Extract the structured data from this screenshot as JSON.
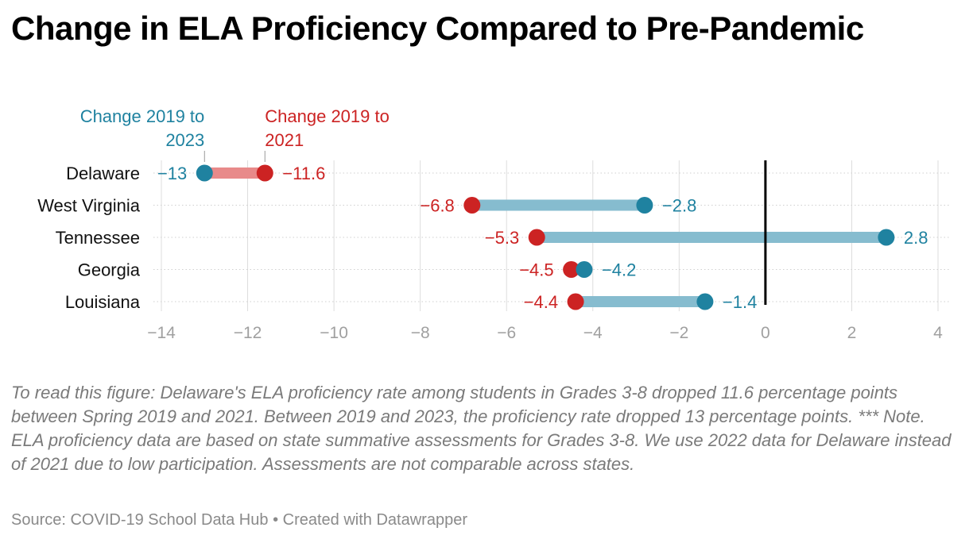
{
  "title": "Change in ELA Proficiency Compared to Pre-Pandemic",
  "note": "To read this figure: Delaware's ELA proficiency rate among students in Grades 3-8 dropped 11.6 percentage points between Spring 2019 and 2021. Between 2019 and 2023, the proficiency rate dropped 13 percentage points. *** Note. ELA proficiency data are based on state summative assessments for Grades 3-8. We use 2022 data for Delaware instead of 2021 due to low participation. Assessments are not comparable across states.",
  "footer": {
    "source": "Source: COVID-19 School Data Hub",
    "separator": "•",
    "credit": "Created with Datawrapper"
  },
  "chart_data": {
    "type": "dot-range",
    "xlim": [
      -14,
      4
    ],
    "xticks": [
      -14,
      -12,
      -10,
      -8,
      -6,
      -4,
      -2,
      0,
      2,
      4
    ],
    "xtick_labels": [
      "−14",
      "−12",
      "−10",
      "−8",
      "−6",
      "−4",
      "−2",
      "0",
      "2",
      "4"
    ],
    "grid": true,
    "zero_line": true,
    "series": [
      {
        "key": "y2021",
        "name": "Change 2019 to 2021",
        "color": "#cc2323"
      },
      {
        "key": "y2023",
        "name": "Change 2019 to 2023",
        "color": "#1f82a0"
      }
    ],
    "categories": [
      "Delaware",
      "West Virginia",
      "Tennessee",
      "Georgia",
      "Louisiana"
    ],
    "rows": [
      {
        "state": "Delaware",
        "y2021": -11.6,
        "y2023": -13,
        "label_2021": "−11.6",
        "label_2023": "−13"
      },
      {
        "state": "West Virginia",
        "y2021": -6.8,
        "y2023": -2.8,
        "label_2021": "−6.8",
        "label_2023": "−2.8"
      },
      {
        "state": "Tennessee",
        "y2021": -5.3,
        "y2023": 2.8,
        "label_2021": "−5.3",
        "label_2023": "2.8"
      },
      {
        "state": "Georgia",
        "y2021": -4.5,
        "y2023": -4.2,
        "label_2021": "−4.5",
        "label_2023": "−4.2"
      },
      {
        "state": "Louisiana",
        "y2021": -4.4,
        "y2023": -1.4,
        "label_2021": "−4.4",
        "label_2023": "−1.4"
      }
    ],
    "legend_placement": "annotations above first row",
    "colors": {
      "red": "#cc2323",
      "teal": "#1f82a0",
      "red_bar": "#e88a8a",
      "teal_bar": "#86bccf",
      "grid": "#dddddd",
      "axis_label": "#a0a0a0"
    }
  }
}
